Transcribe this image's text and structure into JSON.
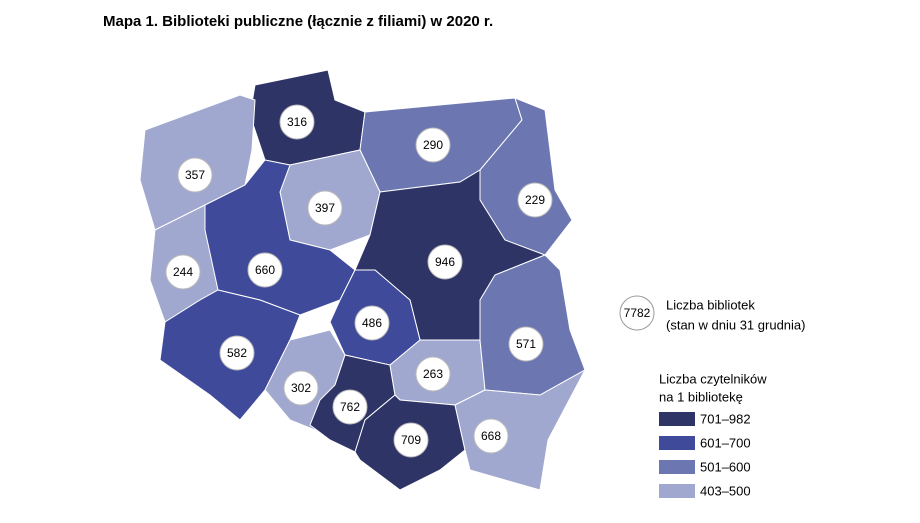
{
  "title": "Mapa 1. Biblioteki publiczne (łącznie z filiami) w 2020 r.",
  "regions": [
    {
      "value": 316,
      "color": "#2e3466"
    },
    {
      "value": 357,
      "color": "#a1a8d0"
    },
    {
      "value": 290,
      "color": "#6c77b2"
    },
    {
      "value": 229,
      "color": "#6c77b2"
    },
    {
      "value": 397,
      "color": "#a1a8d0"
    },
    {
      "value": 244,
      "color": "#a1a8d0"
    },
    {
      "value": 660,
      "color": "#3f4a9b"
    },
    {
      "value": 946,
      "color": "#2e3466"
    },
    {
      "value": 486,
      "color": "#3f4a9b"
    },
    {
      "value": 582,
      "color": "#3f4a9b"
    },
    {
      "value": 302,
      "color": "#a1a8d0"
    },
    {
      "value": 762,
      "color": "#2e3466"
    },
    {
      "value": 263,
      "color": "#a1a8d0"
    },
    {
      "value": 571,
      "color": "#6c77b2"
    },
    {
      "value": 709,
      "color": "#2e3466"
    },
    {
      "value": 668,
      "color": "#a1a8d0"
    }
  ],
  "legend": {
    "sample": "7782",
    "sample_label": [
      "Liczba bibliotek",
      "(stan w dniu 31 grudnia)"
    ],
    "classes_title": [
      "Liczba czytelników",
      "na 1 bibliotekę"
    ],
    "classes": [
      {
        "label": "701–982",
        "color": "#2e3466"
      },
      {
        "label": "601–700",
        "color": "#3f4a9b"
      },
      {
        "label": "501–600",
        "color": "#6c77b2"
      },
      {
        "label": "403–500",
        "color": "#a1a8d0"
      }
    ]
  }
}
